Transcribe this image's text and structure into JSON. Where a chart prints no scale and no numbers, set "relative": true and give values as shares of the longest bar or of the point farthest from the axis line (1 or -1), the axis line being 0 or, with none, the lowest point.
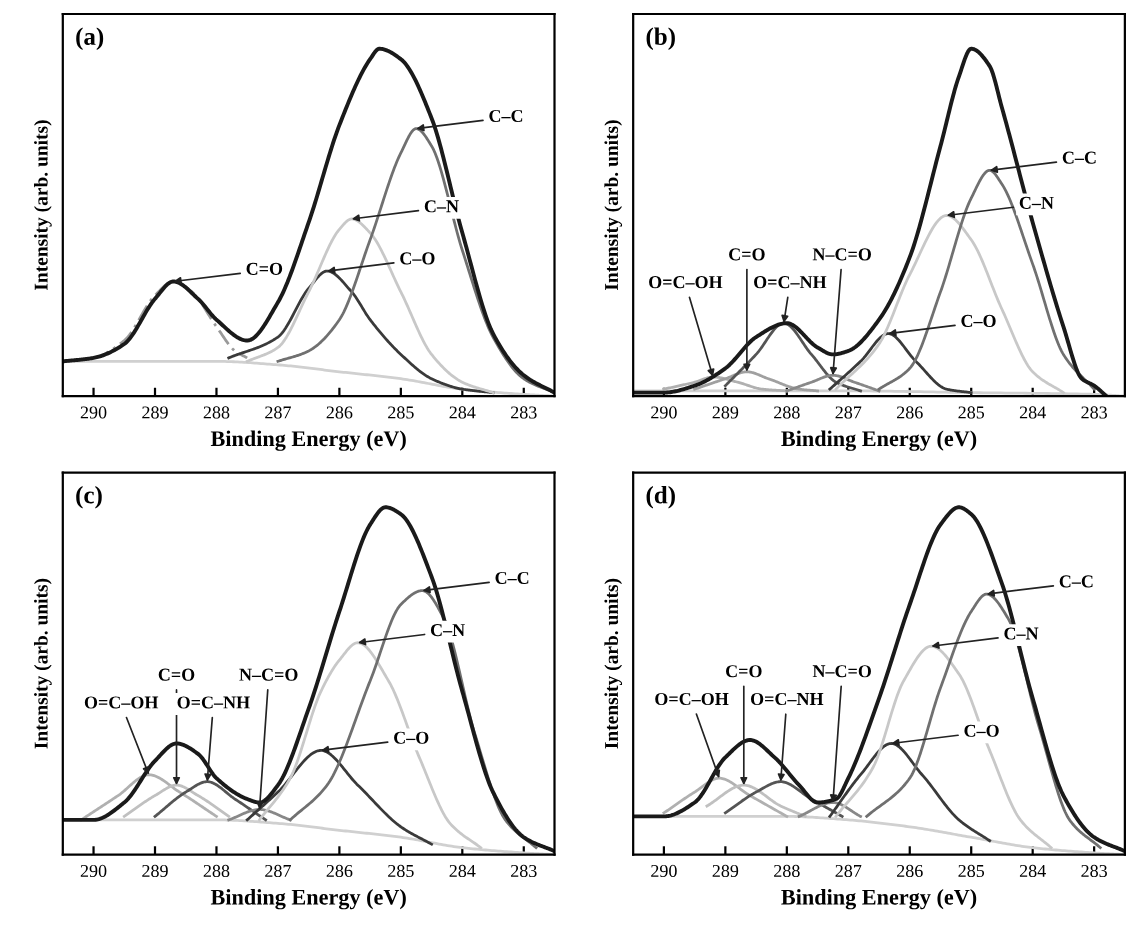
{
  "chart_data": [
    {
      "type": "line",
      "title": "(a)",
      "xlabel": "Binding Energy (eV)",
      "ylabel": "Intensity (arb. units)",
      "relative": true,
      "xlim": [
        290.5,
        282.5
      ],
      "xticks": [
        290,
        289,
        288,
        287,
        286,
        285,
        284,
        283
      ],
      "grid": false,
      "legend": false,
      "marker": "none",
      "series": [
        {
          "color": "#d0d0d0",
          "x": [
            290.5,
            288,
            287,
            286,
            285,
            284,
            283,
            282.5
          ],
          "values": [
            0.1,
            0.1,
            0.09,
            0.07,
            0.05,
            0.02,
            0.005,
            0
          ]
        },
        {
          "color": "#9a9a9a",
          "line_style": "dashed",
          "x": [
            290.5,
            290,
            289.5,
            289,
            288.7,
            288.4,
            288,
            287.7,
            287.5
          ],
          "values": [
            0.1,
            0.11,
            0.16,
            0.29,
            0.33,
            0.3,
            0.2,
            0.13,
            0.11
          ]
        },
        {
          "color": "#3a3a3a",
          "x": [
            287.8,
            287,
            286.5,
            286.2,
            285.8,
            285.5,
            285,
            284.5,
            284,
            283.5
          ],
          "values": [
            0.11,
            0.17,
            0.31,
            0.36,
            0.3,
            0.22,
            0.12,
            0.05,
            0.02,
            0.01
          ]
        },
        {
          "color": "#c8c8c8",
          "x": [
            287.5,
            287,
            286.5,
            286,
            285.8,
            285.5,
            285,
            284.5,
            284,
            283.5
          ],
          "values": [
            0.1,
            0.14,
            0.3,
            0.48,
            0.51,
            0.47,
            0.3,
            0.12,
            0.04,
            0.01
          ]
        },
        {
          "color": "#707070",
          "x": [
            287,
            286.5,
            286,
            285.5,
            285,
            284.75,
            284.5,
            284,
            283.5,
            283,
            282.5
          ],
          "values": [
            0.1,
            0.13,
            0.22,
            0.45,
            0.7,
            0.77,
            0.72,
            0.42,
            0.17,
            0.05,
            0.01
          ]
        },
        {
          "color": "#1a1a1a",
          "x": [
            290.5,
            290,
            289.5,
            289,
            288.7,
            288.3,
            288,
            287.5,
            287,
            286.5,
            286,
            285.5,
            285.35,
            285,
            284.5,
            284,
            283.5,
            283,
            282.5
          ],
          "values": [
            0.1,
            0.11,
            0.15,
            0.28,
            0.33,
            0.28,
            0.22,
            0.16,
            0.27,
            0.5,
            0.78,
            0.97,
            1.0,
            0.97,
            0.8,
            0.47,
            0.18,
            0.06,
            0.01
          ]
        }
      ],
      "annotations": [
        {
          "text": "C=O",
          "x": 288.7,
          "y": 0.33
        },
        {
          "text": "C–O",
          "x": 286.2,
          "y": 0.36
        },
        {
          "text": "C–N",
          "x": 285.8,
          "y": 0.51
        },
        {
          "text": "C–C",
          "x": 284.75,
          "y": 0.77
        }
      ]
    },
    {
      "type": "line",
      "title": "(b)",
      "xlabel": "Binding Energy (eV)",
      "ylabel": "Intensity (arb. units)",
      "relative": true,
      "xlim": [
        290.5,
        282.5
      ],
      "xticks": [
        290,
        289,
        288,
        287,
        286,
        285,
        284,
        283
      ],
      "grid": false,
      "legend": false,
      "marker": "none",
      "series": [
        {
          "color": "#d0d0d0",
          "x": [
            290.5,
            287,
            285,
            283,
            282.5
          ],
          "values": [
            0.015,
            0.015,
            0.01,
            0.005,
            0
          ]
        },
        {
          "color": "#b0b0b0",
          "x": [
            290,
            289.5,
            289.2,
            288.8,
            288.4,
            288
          ],
          "values": [
            0.02,
            0.04,
            0.055,
            0.04,
            0.02,
            0.015
          ]
        },
        {
          "color": "#a0a0a0",
          "x": [
            289.5,
            289,
            288.65,
            288.3,
            287.8,
            287.5
          ],
          "values": [
            0.02,
            0.05,
            0.07,
            0.05,
            0.02,
            0.015
          ]
        },
        {
          "color": "#555555",
          "x": [
            289,
            288.5,
            288.05,
            287.6,
            287.2,
            286.8
          ],
          "values": [
            0.03,
            0.12,
            0.21,
            0.12,
            0.04,
            0.015
          ]
        },
        {
          "color": "#888888",
          "x": [
            288,
            287.6,
            287.25,
            286.9,
            286.5
          ],
          "values": [
            0.015,
            0.04,
            0.06,
            0.04,
            0.015
          ]
        },
        {
          "color": "#3a3a3a",
          "x": [
            287.3,
            286.8,
            286.35,
            285.9,
            285.4,
            285
          ],
          "values": [
            0.02,
            0.1,
            0.18,
            0.1,
            0.02,
            0.01
          ]
        },
        {
          "color": "#c8c8c8",
          "x": [
            287.2,
            286.5,
            286,
            285.4,
            285,
            284.5,
            284,
            283.5
          ],
          "values": [
            0.02,
            0.15,
            0.35,
            0.52,
            0.45,
            0.25,
            0.07,
            0.01
          ]
        },
        {
          "color": "#707070",
          "x": [
            286.5,
            286,
            285.5,
            285,
            284.7,
            284.5,
            284,
            283.5,
            283
          ],
          "values": [
            0.02,
            0.08,
            0.3,
            0.57,
            0.65,
            0.61,
            0.38,
            0.12,
            0.02
          ]
        },
        {
          "color": "#1a1a1a",
          "x": [
            290.5,
            290,
            289.5,
            289,
            288.5,
            288,
            287.5,
            287.25,
            287,
            286.5,
            286,
            285.5,
            285.2,
            285,
            284.7,
            284.5,
            284,
            283.5,
            283.2,
            283,
            282.8
          ],
          "values": [
            0.01,
            0.01,
            0.03,
            0.08,
            0.17,
            0.21,
            0.14,
            0.12,
            0.13,
            0.22,
            0.4,
            0.72,
            0.92,
            1.0,
            0.95,
            0.83,
            0.5,
            0.2,
            0.05,
            0.03,
            0.0
          ]
        }
      ],
      "annotations": [
        {
          "text": "O=C–OH",
          "x": 289.2,
          "y": 0.055
        },
        {
          "text": "C=O",
          "x": 288.65,
          "y": 0.07
        },
        {
          "text": "O=C–NH",
          "x": 288.05,
          "y": 0.21
        },
        {
          "text": "N–C=O",
          "x": 287.25,
          "y": 0.06
        },
        {
          "text": "C–O",
          "x": 286.35,
          "y": 0.18
        },
        {
          "text": "C–N",
          "x": 285.4,
          "y": 0.52
        },
        {
          "text": "C–C",
          "x": 284.7,
          "y": 0.65
        }
      ]
    },
    {
      "type": "line",
      "title": "(c)",
      "xlabel": "Binding Energy (eV)",
      "ylabel": "Intensity (arb. units)",
      "relative": true,
      "xlim": [
        290.5,
        282.5
      ],
      "xticks": [
        290,
        289,
        288,
        287,
        286,
        285,
        284,
        283
      ],
      "grid": false,
      "legend": false,
      "marker": "none",
      "series": [
        {
          "color": "#d0d0d0",
          "x": [
            290.5,
            288,
            287,
            286,
            285,
            284,
            283,
            282.5
          ],
          "values": [
            0.1,
            0.1,
            0.09,
            0.07,
            0.05,
            0.02,
            0.005,
            0
          ]
        },
        {
          "color": "#b0b0b0",
          "x": [
            290.2,
            289.6,
            289.1,
            288.6,
            288
          ],
          "values": [
            0.1,
            0.17,
            0.23,
            0.18,
            0.11
          ]
        },
        {
          "color": "#c0c0c0",
          "x": [
            289.5,
            289,
            288.65,
            288.3,
            287.8
          ],
          "values": [
            0.11,
            0.17,
            0.2,
            0.17,
            0.11
          ]
        },
        {
          "color": "#555555",
          "x": [
            289,
            288.5,
            288.15,
            287.7,
            287.2
          ],
          "values": [
            0.11,
            0.18,
            0.21,
            0.16,
            0.1
          ]
        },
        {
          "color": "#888888",
          "x": [
            287.8,
            287.3,
            286.8
          ],
          "values": [
            0.1,
            0.13,
            0.1
          ]
        },
        {
          "color": "#3a3a3a",
          "x": [
            287.5,
            287,
            286.3,
            285.7,
            285,
            284.5
          ],
          "values": [
            0.1,
            0.18,
            0.3,
            0.2,
            0.08,
            0.03
          ]
        },
        {
          "color": "#c8c8c8",
          "x": [
            287.3,
            286.8,
            286.3,
            286,
            285.7,
            285.2,
            284.7,
            284.2,
            283.7
          ],
          "values": [
            0.1,
            0.22,
            0.47,
            0.56,
            0.61,
            0.5,
            0.28,
            0.09,
            0.02
          ]
        },
        {
          "color": "#707070",
          "x": [
            286.8,
            286.2,
            285.5,
            285,
            284.65,
            284.3,
            283.8,
            283.3,
            282.8
          ],
          "values": [
            0.1,
            0.2,
            0.5,
            0.72,
            0.76,
            0.68,
            0.35,
            0.1,
            0.02
          ]
        },
        {
          "color": "#1a1a1a",
          "x": [
            290.5,
            290,
            289.5,
            289,
            288.65,
            288.3,
            288,
            287.5,
            287.3,
            287,
            286.5,
            286,
            285.5,
            285.25,
            285,
            284.5,
            284,
            283.5,
            283,
            282.5
          ],
          "values": [
            0.1,
            0.1,
            0.15,
            0.27,
            0.32,
            0.29,
            0.22,
            0.16,
            0.15,
            0.2,
            0.42,
            0.7,
            0.95,
            1.0,
            0.98,
            0.8,
            0.47,
            0.18,
            0.05,
            0.01
          ]
        }
      ],
      "annotations": [
        {
          "text": "O=C–OH",
          "x": 289.1,
          "y": 0.23
        },
        {
          "text": "C=O",
          "x": 288.65,
          "y": 0.2
        },
        {
          "text": "O=C–NH",
          "x": 288.15,
          "y": 0.21
        },
        {
          "text": "N–C=O",
          "x": 287.3,
          "y": 0.13
        },
        {
          "text": "C–O",
          "x": 286.3,
          "y": 0.3
        },
        {
          "text": "C–N",
          "x": 285.7,
          "y": 0.61
        },
        {
          "text": "C–C",
          "x": 284.65,
          "y": 0.76
        }
      ]
    },
    {
      "type": "line",
      "title": "(d)",
      "xlabel": "Binding Energy (eV)",
      "ylabel": "Intensity (arb. units)",
      "relative": true,
      "xlim": [
        290.5,
        282.5
      ],
      "xticks": [
        290,
        289,
        288,
        287,
        286,
        285,
        284,
        283
      ],
      "grid": false,
      "legend": false,
      "marker": "none",
      "series": [
        {
          "color": "#d0d0d0",
          "x": [
            290.5,
            288,
            287,
            286,
            285,
            284,
            283,
            282.5
          ],
          "values": [
            0.11,
            0.11,
            0.1,
            0.08,
            0.05,
            0.02,
            0.005,
            0
          ]
        },
        {
          "color": "#b0b0b0",
          "x": [
            290,
            289.5,
            289.1,
            288.6,
            288
          ],
          "values": [
            0.12,
            0.18,
            0.22,
            0.17,
            0.11
          ]
        },
        {
          "color": "#c0c0c0",
          "x": [
            289.3,
            288.7,
            288.1,
            287.7
          ],
          "values": [
            0.14,
            0.2,
            0.14,
            0.11
          ]
        },
        {
          "color": "#555555",
          "x": [
            289,
            288.5,
            288.1,
            287.6,
            287.1
          ],
          "values": [
            0.12,
            0.18,
            0.21,
            0.16,
            0.11
          ]
        },
        {
          "color": "#888888",
          "x": [
            287.8,
            287.25,
            286.8
          ],
          "values": [
            0.11,
            0.15,
            0.11
          ]
        },
        {
          "color": "#3a3a3a",
          "x": [
            287.3,
            286.8,
            286.3,
            285.8,
            285.2,
            284.7
          ],
          "values": [
            0.11,
            0.23,
            0.32,
            0.23,
            0.1,
            0.04
          ]
        },
        {
          "color": "#c8c8c8",
          "x": [
            287.2,
            286.6,
            286.1,
            285.65,
            285.2,
            284.7,
            284.2,
            283.7
          ],
          "values": [
            0.11,
            0.25,
            0.5,
            0.6,
            0.52,
            0.3,
            0.1,
            0.02
          ]
        },
        {
          "color": "#707070",
          "x": [
            286.7,
            286,
            285.5,
            285,
            284.75,
            284.4,
            283.9,
            283.4,
            282.9
          ],
          "values": [
            0.11,
            0.22,
            0.48,
            0.7,
            0.75,
            0.68,
            0.37,
            0.1,
            0.02
          ]
        },
        {
          "color": "#1a1a1a",
          "x": [
            290.5,
            290,
            289.5,
            289,
            288.6,
            288.2,
            287.8,
            287.5,
            287.2,
            287,
            286.5,
            286,
            285.5,
            285.2,
            285,
            284.5,
            284,
            283.5,
            283,
            282.5
          ],
          "values": [
            0.11,
            0.11,
            0.15,
            0.28,
            0.33,
            0.28,
            0.2,
            0.15,
            0.16,
            0.22,
            0.45,
            0.72,
            0.95,
            1.0,
            0.98,
            0.78,
            0.45,
            0.17,
            0.05,
            0.01
          ]
        }
      ],
      "annotations": [
        {
          "text": "O=C–OH",
          "x": 289.1,
          "y": 0.22
        },
        {
          "text": "C=O",
          "x": 288.7,
          "y": 0.2
        },
        {
          "text": "O=C–NH",
          "x": 288.1,
          "y": 0.21
        },
        {
          "text": "N–C=O",
          "x": 287.25,
          "y": 0.15
        },
        {
          "text": "C–O",
          "x": 286.3,
          "y": 0.32
        },
        {
          "text": "C–N",
          "x": 285.65,
          "y": 0.6
        },
        {
          "text": "C–C",
          "x": 284.75,
          "y": 0.75
        }
      ]
    }
  ]
}
